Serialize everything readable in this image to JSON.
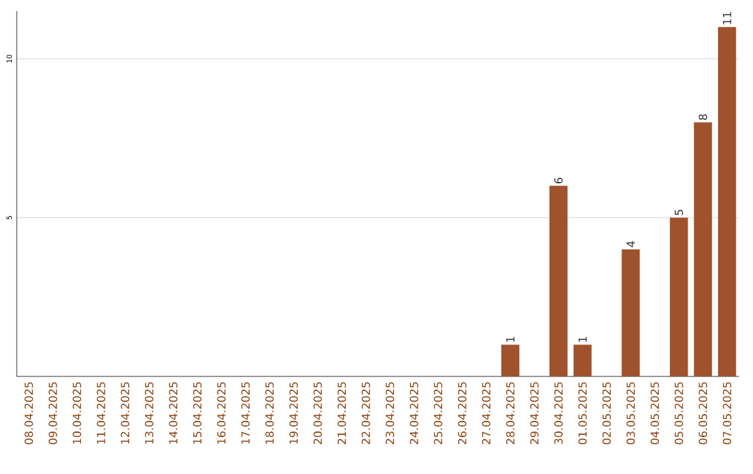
{
  "chart_data": {
    "type": "bar",
    "categories": [
      "08.04.2025",
      "09.04.2025",
      "10.04.2025",
      "11.04.2025",
      "12.04.2025",
      "13.04.2025",
      "14.04.2025",
      "15.04.2025",
      "16.04.2025",
      "17.04.2025",
      "18.04.2025",
      "19.04.2025",
      "20.04.2025",
      "21.04.2025",
      "22.04.2025",
      "23.04.2025",
      "24.04.2025",
      "25.04.2025",
      "26.04.2025",
      "27.04.2025",
      "28.04.2025",
      "29.04.2025",
      "30.04.2025",
      "01.05.2025",
      "02.05.2025",
      "03.05.2025",
      "04.05.2025",
      "05.05.2025",
      "06.05.2025",
      "07.05.2025"
    ],
    "values": [
      0,
      0,
      0,
      0,
      0,
      0,
      0,
      0,
      0,
      0,
      0,
      0,
      0,
      0,
      0,
      0,
      0,
      0,
      0,
      0,
      1,
      0,
      6,
      1,
      0,
      4,
      0,
      5,
      8,
      11
    ],
    "value_labels": [
      null,
      null,
      null,
      null,
      null,
      null,
      null,
      null,
      null,
      null,
      null,
      null,
      null,
      null,
      null,
      null,
      null,
      null,
      null,
      null,
      "1",
      null,
      "6",
      "1",
      null,
      "4",
      null,
      "5",
      "8",
      "11"
    ],
    "color": "#a0522d",
    "ylim": [
      0,
      11.5
    ],
    "yticks": [
      5,
      10
    ],
    "grid": "y"
  }
}
